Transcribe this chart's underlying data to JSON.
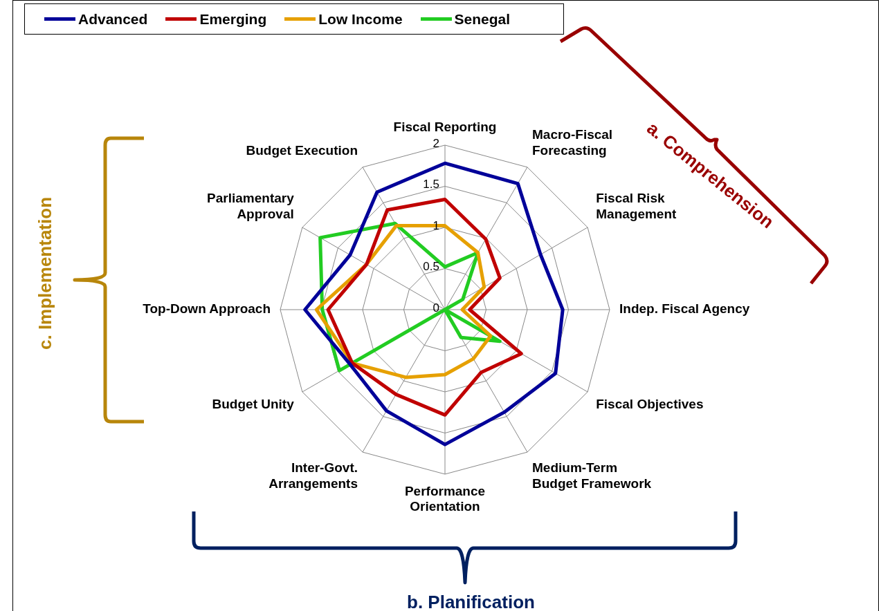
{
  "chart_data": {
    "type": "radar",
    "categories": [
      "Fiscal Reporting",
      "Macro-Fiscal Forecasting",
      "Fiscal Risk Management",
      "Indep. Fiscal Agency",
      "Fiscal Objectives",
      "Medium-Term Budget Framework",
      "Performance Orientation",
      "Inter-Govt. Arrangements",
      "Budget Unity",
      "Top-Down Approach",
      "Parliamentary Approval",
      "Budget Execution"
    ],
    "series": [
      {
        "name": "Advanced",
        "color": "#000099",
        "values": [
          1.78,
          1.77,
          1.34,
          1.43,
          1.55,
          1.44,
          1.64,
          1.42,
          1.33,
          1.7,
          1.33,
          1.65
        ]
      },
      {
        "name": "Emerging",
        "color": "#c00000",
        "values": [
          1.34,
          0.99,
          0.77,
          0.3,
          1.07,
          0.88,
          1.28,
          1.19,
          1.3,
          1.42,
          1.1,
          1.4
        ]
      },
      {
        "name": "Low Income",
        "color": "#e6a000",
        "values": [
          1.02,
          0.8,
          0.55,
          0.21,
          0.64,
          0.69,
          0.79,
          0.95,
          1.3,
          1.56,
          1.1,
          1.18
        ]
      },
      {
        "name": "Senegal",
        "color": "#22cc22",
        "values": [
          0.52,
          0.8,
          0.25,
          0,
          0.77,
          0.39,
          0,
          0,
          1.48,
          1.49,
          1.75,
          1.21
        ]
      }
    ],
    "ylim": [
      0,
      2
    ],
    "yticks": [
      0,
      0.5,
      1,
      1.5,
      2
    ],
    "grid": true,
    "legend": "top left",
    "marker": "none",
    "line_style": "solid",
    "annotations": [
      "a. Comprehension",
      "b. Planification",
      "c. Implementation"
    ]
  }
}
